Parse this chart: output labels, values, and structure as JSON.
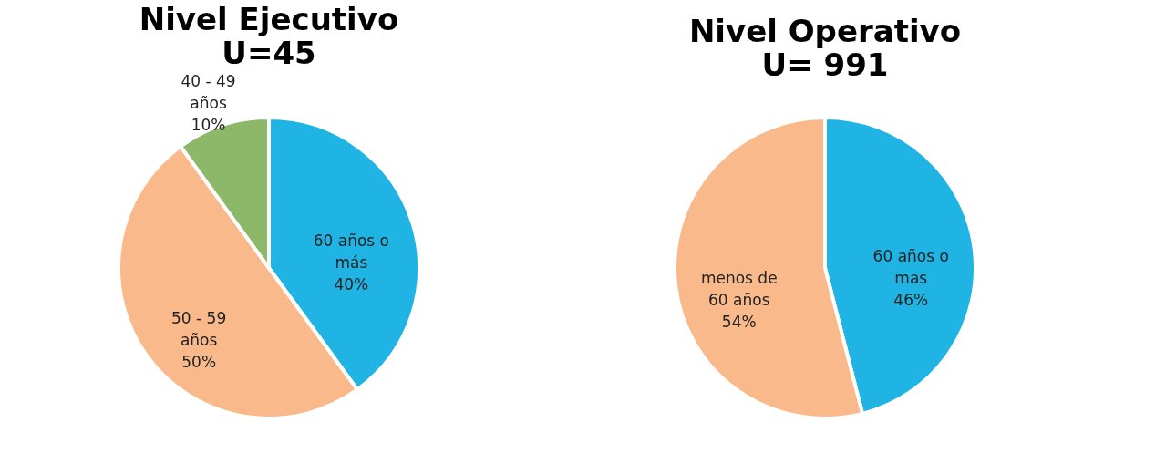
{
  "chart_data": [
    {
      "type": "pie",
      "title": "Nivel Ejecutivo",
      "subtitle": "U=45",
      "categories": [
        "60 años o más",
        "50 - 59 años",
        "40 - 49 años"
      ],
      "values": [
        40,
        50,
        10
      ],
      "value_labels": [
        "40%",
        "50%",
        "10%"
      ],
      "colors": [
        "#1fb4e3",
        "#f9b98a",
        "#8db86a"
      ],
      "legend": false
    },
    {
      "type": "pie",
      "title": "Nivel Operativo",
      "subtitle": "U= 991",
      "categories": [
        "60 años o mas",
        "menos de 60 años"
      ],
      "values": [
        46,
        54
      ],
      "value_labels": [
        "46%",
        "54%"
      ],
      "colors": [
        "#1fb4e3",
        "#f9b98a"
      ],
      "legend": false
    }
  ]
}
